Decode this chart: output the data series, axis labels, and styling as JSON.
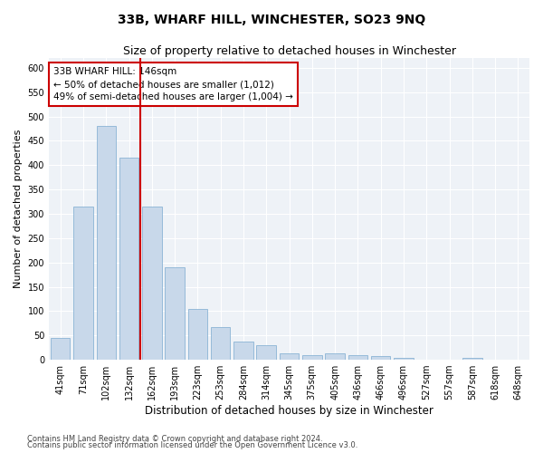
{
  "title": "33B, WHARF HILL, WINCHESTER, SO23 9NQ",
  "subtitle": "Size of property relative to detached houses in Winchester",
  "xlabel": "Distribution of detached houses by size in Winchester",
  "ylabel": "Number of detached properties",
  "categories": [
    "41sqm",
    "71sqm",
    "102sqm",
    "132sqm",
    "162sqm",
    "193sqm",
    "223sqm",
    "253sqm",
    "284sqm",
    "314sqm",
    "345sqm",
    "375sqm",
    "405sqm",
    "436sqm",
    "466sqm",
    "496sqm",
    "527sqm",
    "557sqm",
    "587sqm",
    "618sqm",
    "648sqm"
  ],
  "values": [
    45,
    315,
    480,
    415,
    315,
    190,
    105,
    67,
    37,
    30,
    13,
    10,
    13,
    10,
    7,
    4,
    1,
    0,
    3,
    1,
    1
  ],
  "bar_color": "#c8d8ea",
  "bar_edge_color": "#7baad0",
  "vline_x": 3.5,
  "vline_color": "#cc0000",
  "annotation_text": "33B WHARF HILL: 146sqm\n← 50% of detached houses are smaller (1,012)\n49% of semi-detached houses are larger (1,004) →",
  "annotation_box_color": "#cc0000",
  "ylim": [
    0,
    620
  ],
  "yticks": [
    0,
    50,
    100,
    150,
    200,
    250,
    300,
    350,
    400,
    450,
    500,
    550,
    600
  ],
  "footer1": "Contains HM Land Registry data © Crown copyright and database right 2024.",
  "footer2": "Contains public sector information licensed under the Open Government Licence v3.0.",
  "background_color": "#eef2f7",
  "grid_color": "#ffffff",
  "title_fontsize": 10,
  "subtitle_fontsize": 9,
  "axis_label_fontsize": 8,
  "tick_fontsize": 7,
  "bar_width": 0.85
}
